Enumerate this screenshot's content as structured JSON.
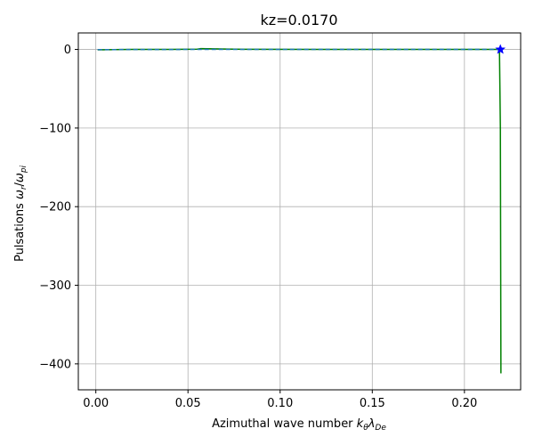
{
  "chart_data": {
    "type": "line",
    "title": "kz=0.0170",
    "xlabel": {
      "base": "Azimuthal wave number ",
      "sym1": "k",
      "sub1": "θ",
      "sym2": "λ",
      "sub2": "De"
    },
    "ylabel": {
      "base": "Pulsations ",
      "sym1": "ω",
      "sub1": "r",
      "slash": "/",
      "sym2": "ω",
      "sub2": "pi"
    },
    "xlim": [
      -0.0095,
      0.2305
    ],
    "ylim": [
      -433,
      21
    ],
    "xticks": [
      0.0,
      0.05,
      0.1,
      0.15,
      0.2
    ],
    "xtick_labels": [
      "0.00",
      "0.05",
      "0.10",
      "0.15",
      "0.20"
    ],
    "yticks": [
      0,
      -100,
      -200,
      -300,
      -400
    ],
    "ytick_labels": [
      "0",
      "−100",
      "−200",
      "−300",
      "−400"
    ],
    "grid": true,
    "series": [
      {
        "color": "#008000",
        "style": "solid",
        "x": [
          0.001,
          0.02,
          0.04,
          0.055,
          0.057,
          0.08,
          0.12,
          0.16,
          0.2,
          0.219,
          0.2195,
          0.2198
        ],
        "y": [
          -0.5,
          0,
          0,
          0.3,
          1.0,
          0.2,
          0,
          0,
          0,
          0,
          -100,
          -412
        ]
      },
      {
        "color": "#1f77b4",
        "style": "dashed",
        "x": [
          0.001,
          0.05,
          0.1,
          0.15,
          0.2,
          0.219
        ],
        "y": [
          -0.2,
          0,
          0,
          0,
          0,
          0
        ]
      }
    ],
    "markers": [
      {
        "x": 0.2195,
        "y": 0,
        "shape": "star",
        "color": "#0000ff"
      }
    ]
  }
}
